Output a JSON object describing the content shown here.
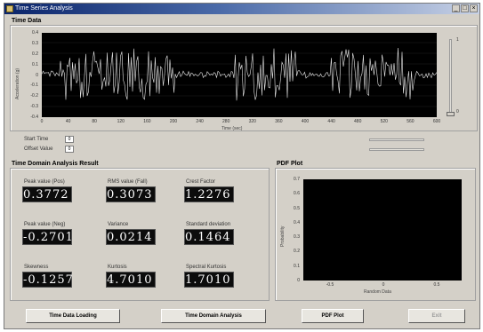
{
  "window": {
    "title": "Time Series Analysis"
  },
  "time_data": {
    "group_title": "Time Data",
    "y_ticks": [
      "0.4",
      "0.3",
      "0.2",
      "0.1",
      "0",
      "-0.1",
      "-0.2",
      "-0.3",
      "-0.4"
    ],
    "x_ticks": [
      "0",
      "40",
      "80",
      "120",
      "160",
      "200",
      "240",
      "280",
      "320",
      "360",
      "400",
      "440",
      "480",
      "520",
      "560",
      "600"
    ],
    "y_label": "Acceleration (g)",
    "x_label": "Time (sec)",
    "right_slider_top": "1",
    "right_slider_bottom": "0"
  },
  "controls": {
    "start_label": "Start Time",
    "start_value": "0",
    "offset_label": "Offset Value",
    "offset_value": "0"
  },
  "time_domain": {
    "group_title": "Time Domain Analysis Result",
    "peak_label": "Peak value (Pos)",
    "peak_value": "0.3772",
    "rms_label": "RMS value (Fall)",
    "rms_value": "0.3073",
    "crest_label": "Crest Factor",
    "crest_value": "1.2276",
    "peakneg_label": "Peak value (Neg)",
    "peakneg_value": "-0.2701",
    "variance_label": "Variance",
    "variance_value": "0.0214",
    "std_label": "Standard deviation",
    "std_value": "0.1464",
    "skew_label": "Skewness",
    "skew_value": "-0.1257",
    "kurt_label": "Kurtosis",
    "kurt_value": "4.7010",
    "spec_label": "Spectral Kurtosis",
    "spec_value": "1.7010"
  },
  "pdf_plot": {
    "group_title": "PDF Plot",
    "y_ticks": [
      "0.7",
      "0.6",
      "0.5",
      "0.4",
      "0.3",
      "0.2",
      "0.1",
      "0"
    ],
    "x_ticks": [
      "-0.5",
      "0",
      "0.5"
    ],
    "y_label": "Probability",
    "x_label": "Random Data"
  },
  "buttons": {
    "load": "Time Data Loading",
    "analysis": "Time Domain Analysis",
    "pdf": "PDF Plot",
    "exit": "Exit"
  }
}
